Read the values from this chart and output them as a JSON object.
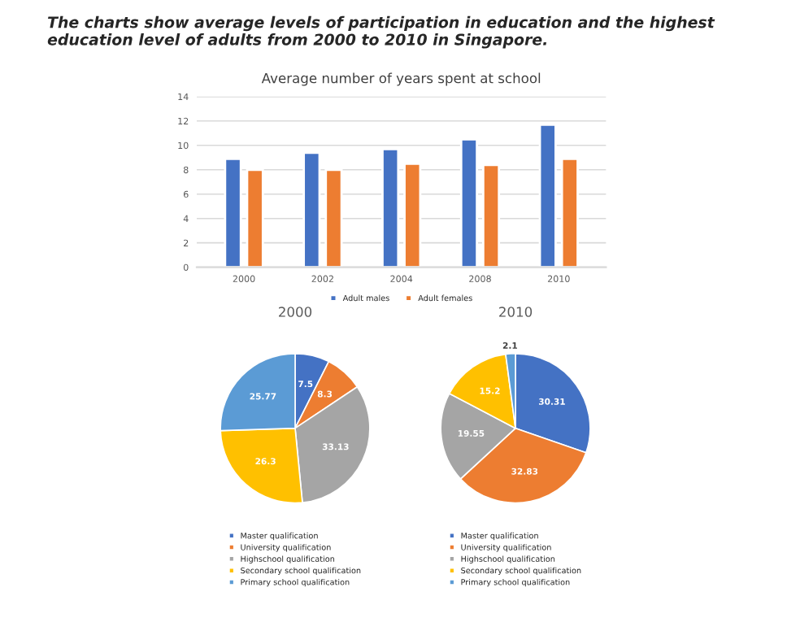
{
  "chart_data": [
    {
      "type": "bar",
      "title": "Average number of years spent at school",
      "categories": [
        "2000",
        "2002",
        "2004",
        "2008",
        "2010"
      ],
      "series": [
        {
          "name": "Adult males",
          "color": "#4472c4",
          "values": [
            8.9,
            9.4,
            9.7,
            10.5,
            11.7
          ]
        },
        {
          "name": "Adult females",
          "color": "#ed7d31",
          "values": [
            8.0,
            8.0,
            8.5,
            8.4,
            8.9
          ]
        }
      ],
      "ylim": [
        0,
        14
      ],
      "yticks": [
        0,
        2,
        4,
        6,
        8,
        10,
        12,
        14
      ],
      "grid": "y",
      "legend": "bottom",
      "annotations": [
        "The charts show average levels of participation in education and the highest education level of adults from 2000 to 2010 in Singapore."
      ]
    },
    {
      "type": "pie",
      "title": "2000",
      "categories": [
        "Master qualification",
        "University qualification",
        "Highschool qualification",
        "Secondary school qualification",
        "Primary school qualification"
      ],
      "values": [
        7.5,
        8.3,
        33.13,
        26.3,
        25.77
      ],
      "colors": [
        "#4472c4",
        "#ed7d31",
        "#a5a5a5",
        "#ffc000",
        "#5b9bd5"
      ],
      "data_labels": true,
      "legend": "bottom"
    },
    {
      "type": "pie",
      "title": "2010",
      "categories": [
        "Master qualification",
        "University qualification",
        "Highschool qualification",
        "Secondary school qualification",
        "Primary school qualification"
      ],
      "values": [
        30.31,
        32.83,
        19.55,
        15.2,
        2.1
      ],
      "colors": [
        "#4472c4",
        "#ed7d31",
        "#a5a5a5",
        "#ffc000",
        "#5b9bd5"
      ],
      "data_labels": true,
      "legend": "bottom"
    }
  ]
}
